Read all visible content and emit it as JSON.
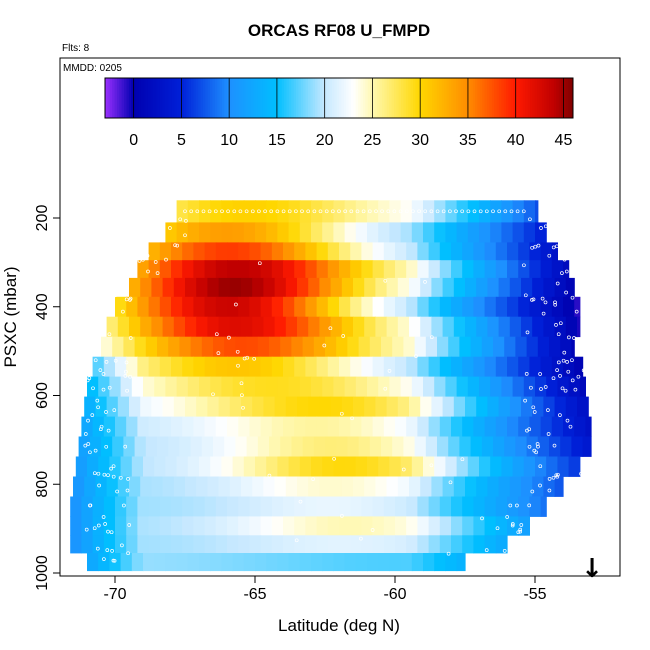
{
  "chart_data": {
    "type": "heatmap",
    "title": "ORCAS RF08 U_FMPD",
    "flights_note": "Flts: 8",
    "date_note": "MMDD: 0205",
    "xlabel": "Latitude (deg N)",
    "ylabel": "PSXC (mbar)",
    "xlim": [
      -72,
      -52
    ],
    "ylim": [
      1000,
      100
    ],
    "xticks": [
      -70,
      -65,
      -60,
      -55
    ],
    "yticks": [
      200,
      400,
      600,
      800,
      1000
    ],
    "colorbar": {
      "range": [
        -3,
        46
      ],
      "ticks": [
        0,
        5,
        10,
        15,
        20,
        25,
        30,
        35,
        40,
        45
      ],
      "colors": [
        {
          "v": -3,
          "c": "#9b30ff"
        },
        {
          "v": 0,
          "c": "#0000b0"
        },
        {
          "v": 5,
          "c": "#0020d8"
        },
        {
          "v": 10,
          "c": "#1e90ff"
        },
        {
          "v": 15,
          "c": "#00bfff"
        },
        {
          "v": 20,
          "c": "#c6e8ff"
        },
        {
          "v": 23,
          "c": "#ffffff"
        },
        {
          "v": 25,
          "c": "#fff8b0"
        },
        {
          "v": 30,
          "c": "#ffd700"
        },
        {
          "v": 35,
          "c": "#ff8c00"
        },
        {
          "v": 40,
          "c": "#ff1a00"
        },
        {
          "v": 44,
          "c": "#c00000"
        },
        {
          "v": 46,
          "c": "#800000"
        }
      ]
    },
    "layers": [
      {
        "p": 185,
        "lat0": -67.8,
        "lat1": -54.9
      },
      {
        "p": 235,
        "lat0": -68.2,
        "lat1": -54.6
      },
      {
        "p": 275,
        "lat0": -68.8,
        "lat1": -54.2
      },
      {
        "p": 315,
        "lat0": -69.2,
        "lat1": -53.8
      },
      {
        "p": 355,
        "lat0": -69.5,
        "lat1": -53.6
      },
      {
        "p": 400,
        "lat0": -70.0,
        "lat1": -53.4
      },
      {
        "p": 445,
        "lat0": -70.3,
        "lat1": -53.4
      },
      {
        "p": 490,
        "lat0": -70.5,
        "lat1": -53.6
      },
      {
        "p": 535,
        "lat0": -70.8,
        "lat1": -53.3
      },
      {
        "p": 580,
        "lat0": -71.0,
        "lat1": -53.2
      },
      {
        "p": 625,
        "lat0": -71.1,
        "lat1": -53.1
      },
      {
        "p": 670,
        "lat0": -71.2,
        "lat1": -53.0
      },
      {
        "p": 715,
        "lat0": -71.3,
        "lat1": -53.0
      },
      {
        "p": 760,
        "lat0": -71.4,
        "lat1": -53.4
      },
      {
        "p": 805,
        "lat0": -71.5,
        "lat1": -54.0
      },
      {
        "p": 850,
        "lat0": -71.6,
        "lat1": -54.6
      },
      {
        "p": 895,
        "lat0": -71.6,
        "lat1": -55.2
      },
      {
        "p": 935,
        "lat0": -71.6,
        "lat1": -56.0
      },
      {
        "p": 975,
        "lat0": -71.0,
        "lat1": -57.5
      }
    ],
    "wind_field": {
      "jet_peak_value": 45,
      "jet_center_lat": -65.8,
      "jet_center_p": 370,
      "low_level_min": 13,
      "southern_edge_value": 13,
      "northern_edge_value": 1
    },
    "annotation": "↓"
  }
}
